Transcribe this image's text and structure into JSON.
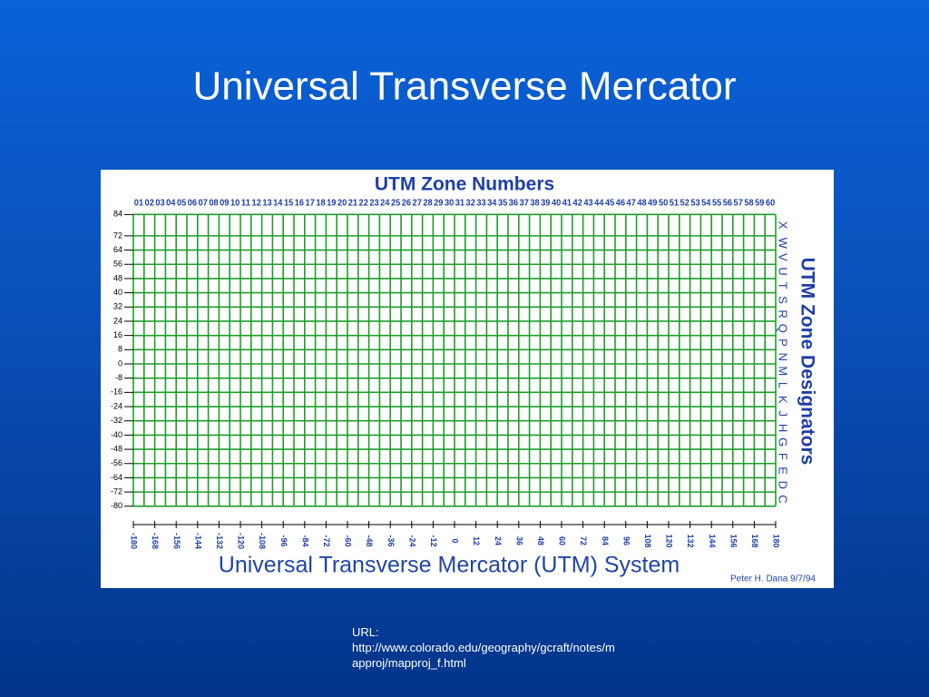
{
  "title": "Universal Transverse Mercator",
  "figure": {
    "heading": "UTM Zone Numbers",
    "zone_numbers": [
      "01",
      "02",
      "03",
      "04",
      "05",
      "06",
      "07",
      "08",
      "09",
      "10",
      "11",
      "12",
      "13",
      "14",
      "15",
      "16",
      "17",
      "18",
      "19",
      "20",
      "21",
      "22",
      "23",
      "24",
      "25",
      "26",
      "27",
      "28",
      "29",
      "30",
      "31",
      "32",
      "33",
      "34",
      "35",
      "36",
      "37",
      "38",
      "39",
      "40",
      "41",
      "42",
      "43",
      "44",
      "45",
      "46",
      "47",
      "48",
      "49",
      "50",
      "51",
      "52",
      "53",
      "54",
      "55",
      "56",
      "57",
      "58",
      "59",
      "60"
    ],
    "latitude_labels": [
      84,
      72,
      64,
      56,
      48,
      40,
      32,
      24,
      16,
      8,
      0,
      -8,
      -16,
      -24,
      -32,
      -40,
      -48,
      -56,
      -64,
      -72,
      -80
    ],
    "zone_designators_title": "UTM Zone Designators",
    "zone_designators": [
      "X",
      "W",
      "V",
      "U",
      "T",
      "S",
      "R",
      "Q",
      "P",
      "N",
      "M",
      "L",
      "K",
      "J",
      "H",
      "G",
      "F",
      "E",
      "D",
      "C"
    ],
    "longitude_labels": [
      -180,
      -168,
      -156,
      -144,
      -132,
      -120,
      -108,
      -96,
      -84,
      -72,
      -60,
      -48,
      -36,
      -24,
      -12,
      0,
      12,
      24,
      36,
      48,
      60,
      72,
      84,
      96,
      108,
      120,
      132,
      144,
      156,
      168,
      180
    ],
    "caption": "Universal Transverse Mercator (UTM) System",
    "credit": "Peter H. Dana 9/7/94"
  },
  "footer": {
    "label": "URL:",
    "url": "http://www.colorado.edu/geography/gcraft/notes/mapproj/mapproj_f.html"
  }
}
